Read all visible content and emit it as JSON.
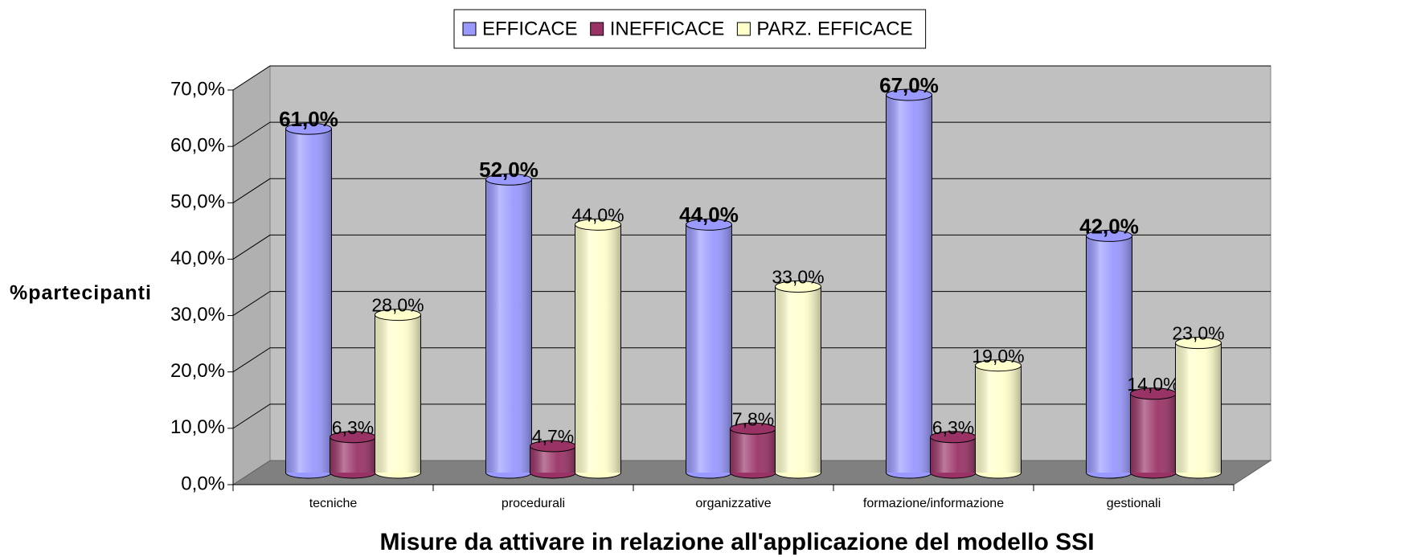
{
  "chart_data": {
    "type": "bar3d",
    "y_label": "%partecipanti",
    "x_label": "Misure da attivare in relazione all'applicazione del modello SSI",
    "categories": [
      "tecniche",
      "procedurali",
      "organizzative",
      "formazione/informazione",
      "gestionali"
    ],
    "series": [
      {
        "name": "EFFICACE",
        "color": "#9999ff",
        "values": [
          61,
          52,
          44,
          67,
          42
        ],
        "value_labels": [
          "61,0%",
          "52,0%",
          "44,0%",
          "67,0%",
          "42,0%"
        ]
      },
      {
        "name": "INEFFICACE",
        "color": "#993366",
        "values": [
          6.3,
          4.7,
          7.8,
          6.3,
          14
        ],
        "value_labels": [
          "6,3%",
          "4,7%",
          "7,8%",
          "6,3%",
          "14,0%"
        ]
      },
      {
        "name": "PARZ. EFFICACE",
        "color": "#ffffcc",
        "values": [
          28,
          44,
          33,
          19,
          23
        ],
        "value_labels": [
          "28,0%",
          "44,0%",
          "33,0%",
          "19,0%",
          "23,0%"
        ]
      }
    ],
    "ylim": [
      0,
      70
    ],
    "yticks": [
      {
        "value": 0,
        "label": "0,0%"
      },
      {
        "value": 10,
        "label": "10,0%"
      },
      {
        "value": 20,
        "label": "20,0%"
      },
      {
        "value": 30,
        "label": "30,0%"
      },
      {
        "value": 40,
        "label": "40,0%"
      },
      {
        "value": 50,
        "label": "50,0%"
      },
      {
        "value": 60,
        "label": "60,0%"
      },
      {
        "value": 70,
        "label": "70,0%"
      }
    ],
    "grid": true,
    "legend": "top"
  }
}
